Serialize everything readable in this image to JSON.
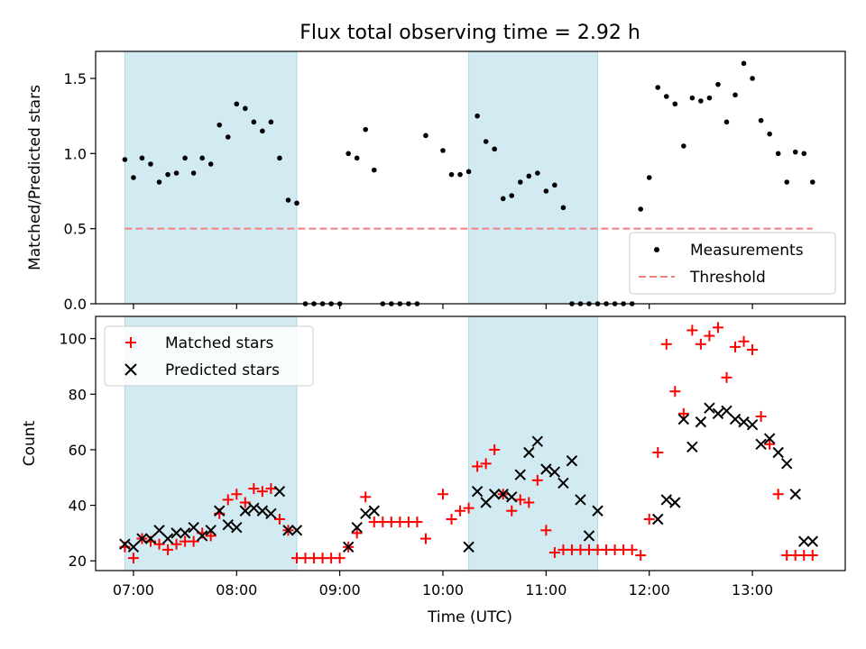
{
  "chart_data": [
    {
      "type": "scatter",
      "title": "Flux total observing time = 2.92 h",
      "ylabel": "Matched/Predicted stars",
      "xlabel": "",
      "xlim": [
        "06:38",
        "13:54"
      ],
      "ylim": [
        0,
        1.68
      ],
      "yticks": [
        {
          "value": 0.0,
          "label": "0.0"
        },
        {
          "value": 0.5,
          "label": "0.5"
        },
        {
          "value": 1.0,
          "label": "1.0"
        },
        {
          "value": 1.5,
          "label": "1.5"
        }
      ],
      "shaded_spans": [
        [
          "06:55",
          "08:35"
        ],
        [
          "10:15",
          "11:30"
        ]
      ],
      "shade_color": "#add8e6",
      "legend_position": "lower-right",
      "legend": [
        {
          "label": "Measurements",
          "marker": "dot",
          "color": "#000000"
        },
        {
          "label": "Threshold",
          "marker": "dashed-line",
          "color": "#f08080"
        }
      ],
      "threshold": {
        "value": 0.5,
        "from": "06:55",
        "to": "13:35"
      },
      "series": [
        {
          "name": "Measurements",
          "x": [
            "06:55",
            "07:00",
            "07:05",
            "07:10",
            "07:15",
            "07:20",
            "07:25",
            "07:30",
            "07:35",
            "07:40",
            "07:45",
            "07:50",
            "07:55",
            "08:00",
            "08:05",
            "08:10",
            "08:15",
            "08:20",
            "08:25",
            "08:30",
            "08:35",
            "08:40",
            "08:45",
            "08:50",
            "08:55",
            "09:00",
            "09:05",
            "09:10",
            "09:15",
            "09:20",
            "09:25",
            "09:30",
            "09:35",
            "09:40",
            "09:45",
            "09:50",
            "10:00",
            "10:05",
            "10:10",
            "10:15",
            "10:20",
            "10:25",
            "10:30",
            "10:35",
            "10:40",
            "10:45",
            "10:50",
            "10:55",
            "11:00",
            "11:05",
            "11:10",
            "11:15",
            "11:20",
            "11:25",
            "11:30",
            "11:35",
            "11:40",
            "11:45",
            "11:50",
            "11:55",
            "12:00",
            "12:05",
            "12:10",
            "12:15",
            "12:20",
            "12:25",
            "12:30",
            "12:35",
            "12:40",
            "12:45",
            "12:50",
            "12:55",
            "13:00",
            "13:05",
            "13:10",
            "13:15",
            "13:20",
            "13:25",
            "13:30",
            "13:35"
          ],
          "y": [
            0.96,
            0.84,
            0.97,
            0.93,
            0.81,
            0.86,
            0.87,
            0.97,
            0.87,
            0.97,
            0.93,
            1.19,
            1.11,
            1.33,
            1.3,
            1.21,
            1.15,
            1.21,
            0.97,
            0.69,
            0.67,
            0.0,
            0.0,
            0.0,
            0.0,
            0.0,
            1.0,
            0.97,
            1.16,
            0.89,
            0.0,
            0.0,
            0.0,
            0.0,
            0.0,
            1.12,
            1.02,
            0.86,
            0.86,
            0.88,
            1.25,
            1.08,
            1.03,
            0.7,
            0.72,
            0.81,
            0.85,
            0.87,
            0.75,
            0.79,
            0.64,
            0.0,
            0.0,
            0.0,
            0.0,
            0.0,
            0.0,
            0.0,
            0.0,
            0.63,
            0.84,
            1.44,
            1.38,
            1.33,
            1.05,
            1.37,
            1.35,
            1.37,
            1.46,
            1.21,
            1.39,
            1.6,
            1.5,
            1.22,
            1.13,
            1.0,
            0.81,
            1.01,
            1.0,
            0.81
          ]
        }
      ]
    },
    {
      "type": "scatter",
      "title": "",
      "ylabel": "Count",
      "xlabel": "Time (UTC)",
      "xlim": [
        "06:38",
        "13:54"
      ],
      "ylim": [
        16.5,
        108
      ],
      "yticks": [
        {
          "value": 20,
          "label": "20"
        },
        {
          "value": 40,
          "label": "40"
        },
        {
          "value": 60,
          "label": "60"
        },
        {
          "value": 80,
          "label": "80"
        },
        {
          "value": 100,
          "label": "100"
        }
      ],
      "xticks": [
        {
          "value": "07:00",
          "label": "07:00"
        },
        {
          "value": "08:00",
          "label": "08:00"
        },
        {
          "value": "09:00",
          "label": "09:00"
        },
        {
          "value": "10:00",
          "label": "10:00"
        },
        {
          "value": "11:00",
          "label": "11:00"
        },
        {
          "value": "12:00",
          "label": "12:00"
        },
        {
          "value": "13:00",
          "label": "13:00"
        }
      ],
      "shaded_spans": [
        [
          "06:55",
          "08:35"
        ],
        [
          "10:15",
          "11:30"
        ]
      ],
      "shade_color": "#add8e6",
      "legend_position": "upper-left",
      "legend": [
        {
          "label": "Matched stars",
          "marker": "plus",
          "color": "#ff0000"
        },
        {
          "label": "Predicted stars",
          "marker": "x",
          "color": "#000000"
        }
      ],
      "series": [
        {
          "name": "Matched stars",
          "marker": "plus",
          "color": "#ff0000",
          "x": [
            "06:55",
            "07:00",
            "07:05",
            "07:10",
            "07:15",
            "07:20",
            "07:25",
            "07:30",
            "07:35",
            "07:40",
            "07:45",
            "07:50",
            "07:55",
            "08:00",
            "08:05",
            "08:10",
            "08:15",
            "08:20",
            "08:25",
            "08:30",
            "08:35",
            "08:40",
            "08:45",
            "08:50",
            "08:55",
            "09:00",
            "09:05",
            "09:10",
            "09:15",
            "09:20",
            "09:25",
            "09:30",
            "09:35",
            "09:40",
            "09:45",
            "09:50",
            "10:00",
            "10:05",
            "10:10",
            "10:15",
            "10:20",
            "10:25",
            "10:30",
            "10:35",
            "10:40",
            "10:45",
            "10:50",
            "10:55",
            "11:00",
            "11:05",
            "11:10",
            "11:15",
            "11:20",
            "11:25",
            "11:30",
            "11:35",
            "11:40",
            "11:45",
            "11:50",
            "11:55",
            "12:00",
            "12:05",
            "12:10",
            "12:15",
            "12:20",
            "12:25",
            "12:30",
            "12:35",
            "12:40",
            "12:45",
            "12:50",
            "12:55",
            "13:00",
            "13:05",
            "13:10",
            "13:15",
            "13:20",
            "13:25",
            "13:30",
            "13:35"
          ],
          "y": [
            25,
            21,
            28,
            27,
            26,
            24,
            26,
            27,
            27,
            30,
            29,
            37,
            42,
            44,
            41,
            46,
            45,
            46,
            35,
            31,
            21,
            21,
            21,
            21,
            21,
            21,
            25,
            30,
            43,
            34,
            34,
            34,
            34,
            34,
            34,
            28,
            44,
            35,
            38,
            39,
            54,
            55,
            60,
            44,
            38,
            42,
            41,
            49,
            31,
            23,
            24,
            24,
            24,
            24,
            24,
            24,
            24,
            24,
            24,
            22,
            35,
            59,
            98,
            81,
            73,
            103,
            98,
            101,
            104,
            86,
            97,
            99,
            96,
            72,
            62,
            44,
            22,
            22,
            22,
            22
          ]
        },
        {
          "name": "Predicted stars",
          "marker": "x",
          "color": "#000000",
          "x": [
            "06:55",
            "07:00",
            "07:05",
            "07:10",
            "07:15",
            "07:20",
            "07:25",
            "07:30",
            "07:35",
            "07:40",
            "07:45",
            "07:50",
            "07:55",
            "08:00",
            "08:05",
            "08:10",
            "08:15",
            "08:20",
            "08:25",
            "08:30",
            "08:35",
            "09:05",
            "09:10",
            "09:15",
            "09:20",
            "10:15",
            "10:20",
            "10:25",
            "10:30",
            "10:35",
            "10:40",
            "10:45",
            "10:50",
            "10:55",
            "11:00",
            "11:05",
            "11:10",
            "11:15",
            "11:20",
            "11:25",
            "11:30",
            "12:05",
            "12:10",
            "12:15",
            "12:20",
            "12:25",
            "12:30",
            "12:35",
            "12:40",
            "12:45",
            "12:50",
            "12:55",
            "13:00",
            "13:05",
            "13:10",
            "13:15",
            "13:20",
            "13:25",
            "13:30",
            "13:35"
          ],
          "y": [
            26,
            25,
            28,
            28,
            31,
            28,
            30,
            30,
            32,
            29,
            31,
            38,
            33,
            32,
            38,
            39,
            38,
            37,
            45,
            31,
            31,
            25,
            32,
            37,
            38,
            25,
            45,
            41,
            44,
            44,
            43,
            51,
            59,
            63,
            53,
            52,
            48,
            56,
            42,
            29,
            38,
            35,
            42,
            41,
            71,
            61,
            70,
            75,
            73,
            74,
            71,
            70,
            69,
            62,
            64,
            59,
            55,
            44,
            27,
            27
          ]
        }
      ]
    }
  ]
}
